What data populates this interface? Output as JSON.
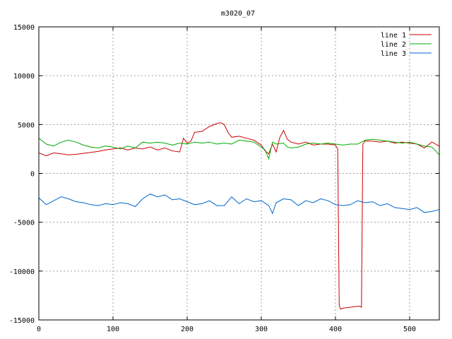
{
  "chart_data": {
    "type": "line",
    "title": "m3020_07",
    "xlabel": "",
    "ylabel": "",
    "xlim": [
      0,
      540
    ],
    "ylim": [
      -15000,
      15000
    ],
    "xticks": [
      0,
      100,
      200,
      300,
      400,
      500
    ],
    "yticks": [
      -15000,
      -10000,
      -5000,
      0,
      5000,
      10000,
      15000
    ],
    "grid": true,
    "legend_position": "top-right",
    "series": [
      {
        "name": "line 1",
        "color": "#cc0000",
        "x": [
          0,
          10,
          20,
          30,
          40,
          50,
          60,
          70,
          80,
          90,
          100,
          110,
          120,
          130,
          140,
          150,
          160,
          170,
          180,
          190,
          195,
          200,
          205,
          210,
          220,
          230,
          240,
          245,
          250,
          255,
          260,
          270,
          280,
          290,
          300,
          305,
          310,
          315,
          320,
          325,
          330,
          335,
          340,
          350,
          360,
          370,
          380,
          390,
          400,
          403,
          405,
          407,
          410,
          420,
          430,
          433,
          435,
          437,
          440,
          450,
          460,
          470,
          480,
          490,
          500,
          510,
          520,
          530,
          540
        ],
        "y": [
          2100,
          1800,
          2100,
          2000,
          1900,
          1950,
          2050,
          2150,
          2250,
          2400,
          2500,
          2600,
          2400,
          2600,
          2500,
          2700,
          2400,
          2600,
          2300,
          2200,
          3600,
          3100,
          3300,
          4200,
          4300,
          4800,
          5100,
          5200,
          5000,
          4200,
          3700,
          3800,
          3600,
          3400,
          2900,
          2300,
          2000,
          3000,
          2200,
          3700,
          4400,
          3500,
          3200,
          3000,
          3200,
          2900,
          3000,
          3000,
          2900,
          2500,
          -13500,
          -13900,
          -13800,
          -13700,
          -13600,
          -13600,
          -13700,
          3000,
          3300,
          3300,
          3200,
          3300,
          3100,
          3200,
          3100,
          3000,
          2600,
          3200,
          2800
        ]
      },
      {
        "name": "line 2",
        "color": "#00aa00",
        "x": [
          0,
          10,
          20,
          30,
          40,
          50,
          60,
          70,
          80,
          90,
          100,
          110,
          120,
          130,
          140,
          150,
          160,
          170,
          180,
          190,
          200,
          210,
          220,
          230,
          240,
          250,
          260,
          270,
          280,
          290,
          300,
          305,
          310,
          315,
          320,
          330,
          335,
          340,
          350,
          360,
          370,
          380,
          390,
          400,
          410,
          420,
          430,
          440,
          450,
          460,
          470,
          480,
          490,
          500,
          510,
          520,
          530,
          535,
          540
        ],
        "y": [
          3600,
          3000,
          2800,
          3200,
          3400,
          3200,
          2900,
          2700,
          2600,
          2800,
          2700,
          2500,
          2800,
          2600,
          3200,
          3100,
          3200,
          3100,
          2900,
          3100,
          3000,
          3200,
          3100,
          3200,
          3000,
          3100,
          3000,
          3400,
          3300,
          3200,
          2700,
          2400,
          1500,
          3200,
          3000,
          3100,
          2700,
          2600,
          2700,
          3000,
          3100,
          3000,
          3100,
          3000,
          2900,
          3000,
          3000,
          3400,
          3500,
          3400,
          3300,
          3200,
          3100,
          3200,
          3000,
          2800,
          2700,
          2300,
          1900
        ]
      },
      {
        "name": "line 3",
        "color": "#0066cc",
        "x": [
          0,
          10,
          20,
          30,
          40,
          50,
          60,
          70,
          80,
          90,
          100,
          110,
          120,
          130,
          140,
          150,
          160,
          170,
          180,
          190,
          200,
          210,
          220,
          230,
          240,
          250,
          260,
          270,
          280,
          290,
          300,
          310,
          315,
          320,
          330,
          340,
          350,
          360,
          370,
          380,
          390,
          400,
          410,
          420,
          430,
          440,
          450,
          460,
          470,
          480,
          490,
          500,
          510,
          520,
          530,
          540
        ],
        "y": [
          -2500,
          -3200,
          -2800,
          -2400,
          -2600,
          -2900,
          -3000,
          -3200,
          -3300,
          -3100,
          -3200,
          -3000,
          -3100,
          -3400,
          -2600,
          -2100,
          -2400,
          -2200,
          -2700,
          -2600,
          -2900,
          -3200,
          -3100,
          -2800,
          -3300,
          -3300,
          -2400,
          -3100,
          -2600,
          -2900,
          -2800,
          -3300,
          -4100,
          -3000,
          -2600,
          -2700,
          -3300,
          -2800,
          -3000,
          -2600,
          -2800,
          -3200,
          -3300,
          -3200,
          -2800,
          -3000,
          -2900,
          -3300,
          -3100,
          -3500,
          -3600,
          -3700,
          -3500,
          -4000,
          -3900,
          -3700
        ]
      }
    ]
  }
}
